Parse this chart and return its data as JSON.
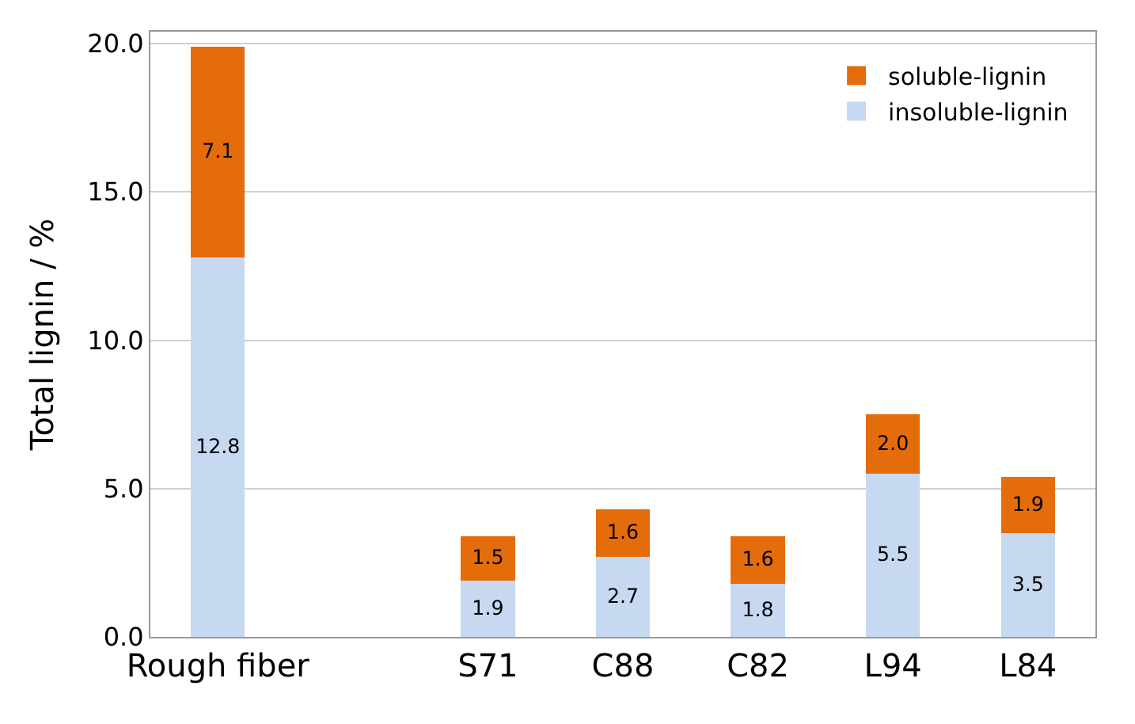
{
  "chart_data": {
    "type": "bar",
    "stacked": true,
    "ylabel": "Total lignin / %",
    "categories": [
      "Rough fiber",
      null,
      "S71",
      "C88",
      "C82",
      "L94",
      "L84"
    ],
    "series": [
      {
        "name": "insoluble-lignin",
        "color": "#c6d9f1",
        "values": [
          12.8,
          null,
          1.9,
          2.7,
          1.8,
          5.5,
          3.5
        ],
        "value_labels": [
          "12.8",
          null,
          "1.9",
          "2.7",
          "1.8",
          "5.5",
          "3.5"
        ]
      },
      {
        "name": "soluble-lignin",
        "color": "#e46c0a",
        "values": [
          7.1,
          null,
          1.5,
          1.6,
          1.6,
          2.0,
          1.9
        ],
        "value_labels": [
          "7.1",
          null,
          "1.5",
          "1.6",
          "1.6",
          "2.0",
          "1.9"
        ]
      }
    ],
    "ylim": [
      0,
      20.4
    ],
    "yticks": [
      {
        "value": 0,
        "label": "0.0"
      },
      {
        "value": 5,
        "label": "5.0"
      },
      {
        "value": 10,
        "label": "10.0"
      },
      {
        "value": 15,
        "label": "15.0"
      },
      {
        "value": 20,
        "label": "20.0"
      }
    ],
    "grid": "y",
    "legend": "top right"
  }
}
